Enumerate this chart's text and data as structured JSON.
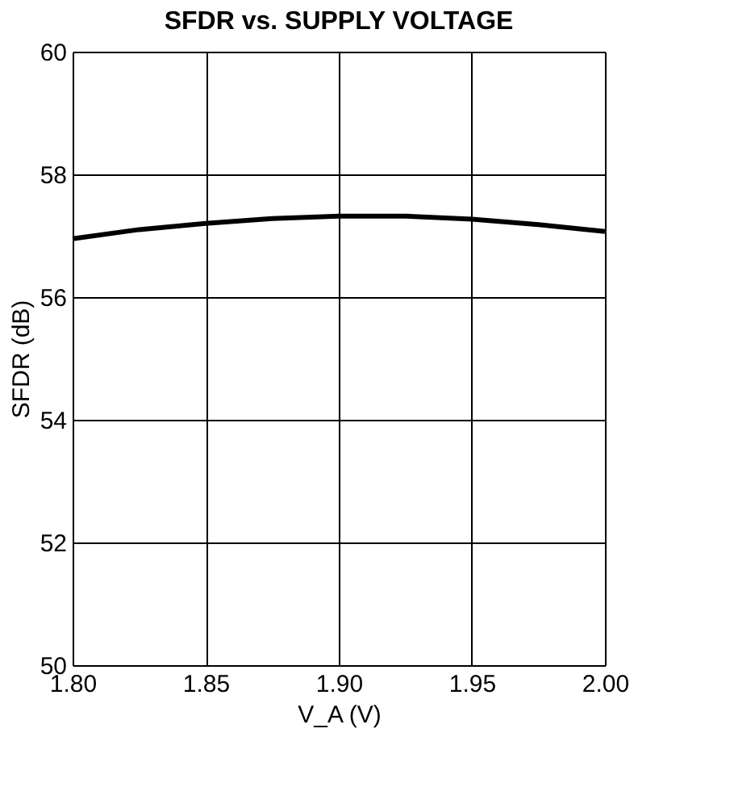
{
  "chart_data": {
    "type": "line",
    "title": "SFDR vs. SUPPLY VOLTAGE",
    "xlabel": "V_A (V)",
    "ylabel": "SFDR (dB)",
    "x": [
      1.8,
      1.825,
      1.85,
      1.875,
      1.9,
      1.925,
      1.95,
      1.975,
      2.0
    ],
    "series": [
      {
        "color": "#000000",
        "values": [
          56.95,
          57.1,
          57.2,
          57.28,
          57.32,
          57.32,
          57.27,
          57.18,
          57.07
        ]
      }
    ],
    "xlim": [
      1.8,
      2.0
    ],
    "xticks": [
      {
        "value": 1.8,
        "label": "1.80"
      },
      {
        "value": 1.85,
        "label": "1.85"
      },
      {
        "value": 1.9,
        "label": "1.90"
      },
      {
        "value": 1.95,
        "label": "1.95"
      },
      {
        "value": 2.0,
        "label": "2.00"
      }
    ],
    "ylim": [
      50,
      60
    ],
    "yticks": [
      50,
      52,
      54,
      56,
      58,
      60
    ],
    "grid": true,
    "marker": "none",
    "line_style": "solid"
  }
}
